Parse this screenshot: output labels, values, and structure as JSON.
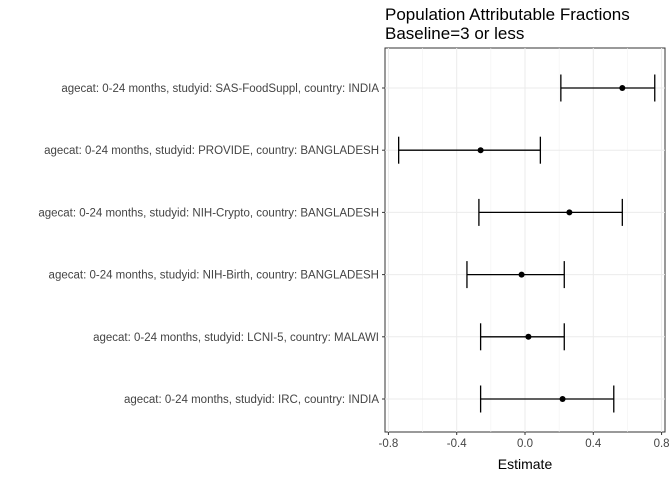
{
  "chart_data": {
    "type": "forest",
    "title": "Population Attributable Fractions",
    "subtitle": "Baseline=3 or less",
    "xlabel": "Estimate",
    "ylabel": "",
    "xlim": [
      -0.82,
      0.82
    ],
    "x_ticks": [
      -0.8,
      -0.4,
      0.0,
      0.4,
      0.8
    ],
    "x_tick_labels": [
      "-0.8",
      "-0.4",
      "0.0",
      "0.4",
      "0.8"
    ],
    "grid": true,
    "rows": [
      {
        "label": "agecat: 0-24 months, studyid: SAS-FoodSuppl, country: INDIA",
        "estimate": 0.57,
        "lower": 0.21,
        "upper": 0.76
      },
      {
        "label": "agecat: 0-24 months, studyid: PROVIDE, country: BANGLADESH",
        "estimate": -0.26,
        "lower": -0.74,
        "upper": 0.09
      },
      {
        "label": "agecat: 0-24 months, studyid: NIH-Crypto, country: BANGLADESH",
        "estimate": 0.26,
        "lower": -0.27,
        "upper": 0.57
      },
      {
        "label": "agecat: 0-24 months, studyid: NIH-Birth, country: BANGLADESH",
        "estimate": -0.02,
        "lower": -0.34,
        "upper": 0.23
      },
      {
        "label": "agecat: 0-24 months, studyid: LCNI-5, country: MALAWI",
        "estimate": 0.02,
        "lower": -0.26,
        "upper": 0.23
      },
      {
        "label": "agecat: 0-24 months, studyid: IRC, country: INDIA",
        "estimate": 0.22,
        "lower": -0.26,
        "upper": 0.52
      }
    ]
  }
}
